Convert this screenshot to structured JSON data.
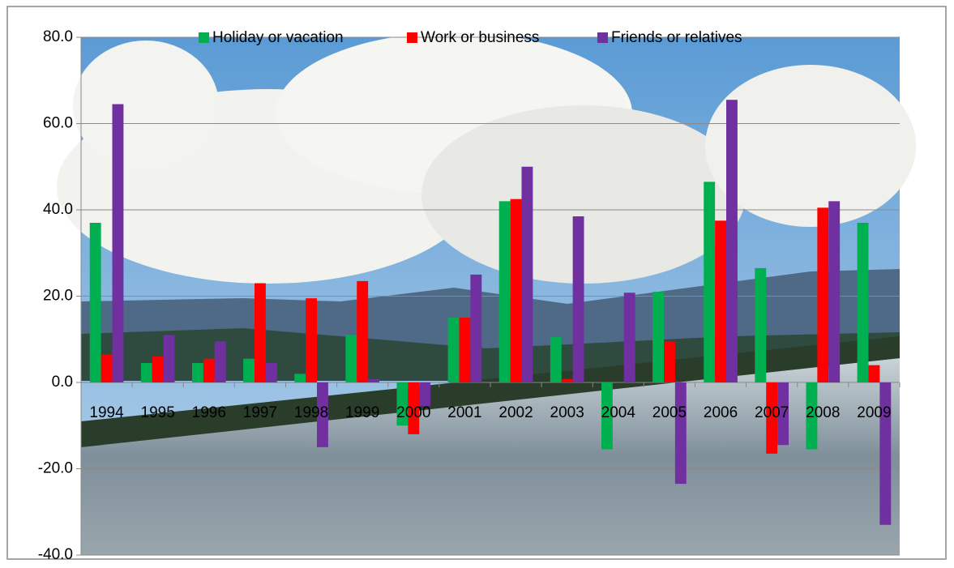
{
  "chart_data": {
    "type": "bar",
    "categories": [
      "1994",
      "1995",
      "1996",
      "1997",
      "1998",
      "1999",
      "2000",
      "2001",
      "2002",
      "2003",
      "2004",
      "2005",
      "2006",
      "2007",
      "2008",
      "2009"
    ],
    "series": [
      {
        "name": "Holiday or vacation",
        "color": "#00b050",
        "values": [
          37,
          4.5,
          4.5,
          5.5,
          2,
          11,
          -10,
          15,
          42,
          10.5,
          -15.5,
          21,
          46.5,
          26.5,
          -15.5,
          37
        ]
      },
      {
        "name": "Work or business",
        "color": "#ff0000",
        "values": [
          6.5,
          6,
          5.5,
          23,
          19.5,
          23.5,
          -12,
          15,
          42.5,
          0.8,
          0,
          9.5,
          37.5,
          -16.5,
          40.5,
          4
        ]
      },
      {
        "name": "Friends or relatives",
        "color": "#7030a0",
        "values": [
          64.5,
          11,
          9.5,
          4.5,
          -15,
          0.8,
          -5.5,
          25,
          50,
          38.5,
          20.8,
          -23.5,
          65.5,
          -14.5,
          42,
          -33
        ]
      }
    ],
    "ylim": [
      -40,
      80
    ],
    "yticks": [
      {
        "value": -40,
        "label": "-40.0"
      },
      {
        "value": -20,
        "label": "-20.0"
      },
      {
        "value": 0,
        "label": "0.0"
      },
      {
        "value": 20,
        "label": "20.0"
      },
      {
        "value": 40,
        "label": "40.0"
      },
      {
        "value": 60,
        "label": "60.0"
      },
      {
        "value": 80,
        "label": "80.0"
      }
    ],
    "grid": true,
    "legend": "top"
  }
}
